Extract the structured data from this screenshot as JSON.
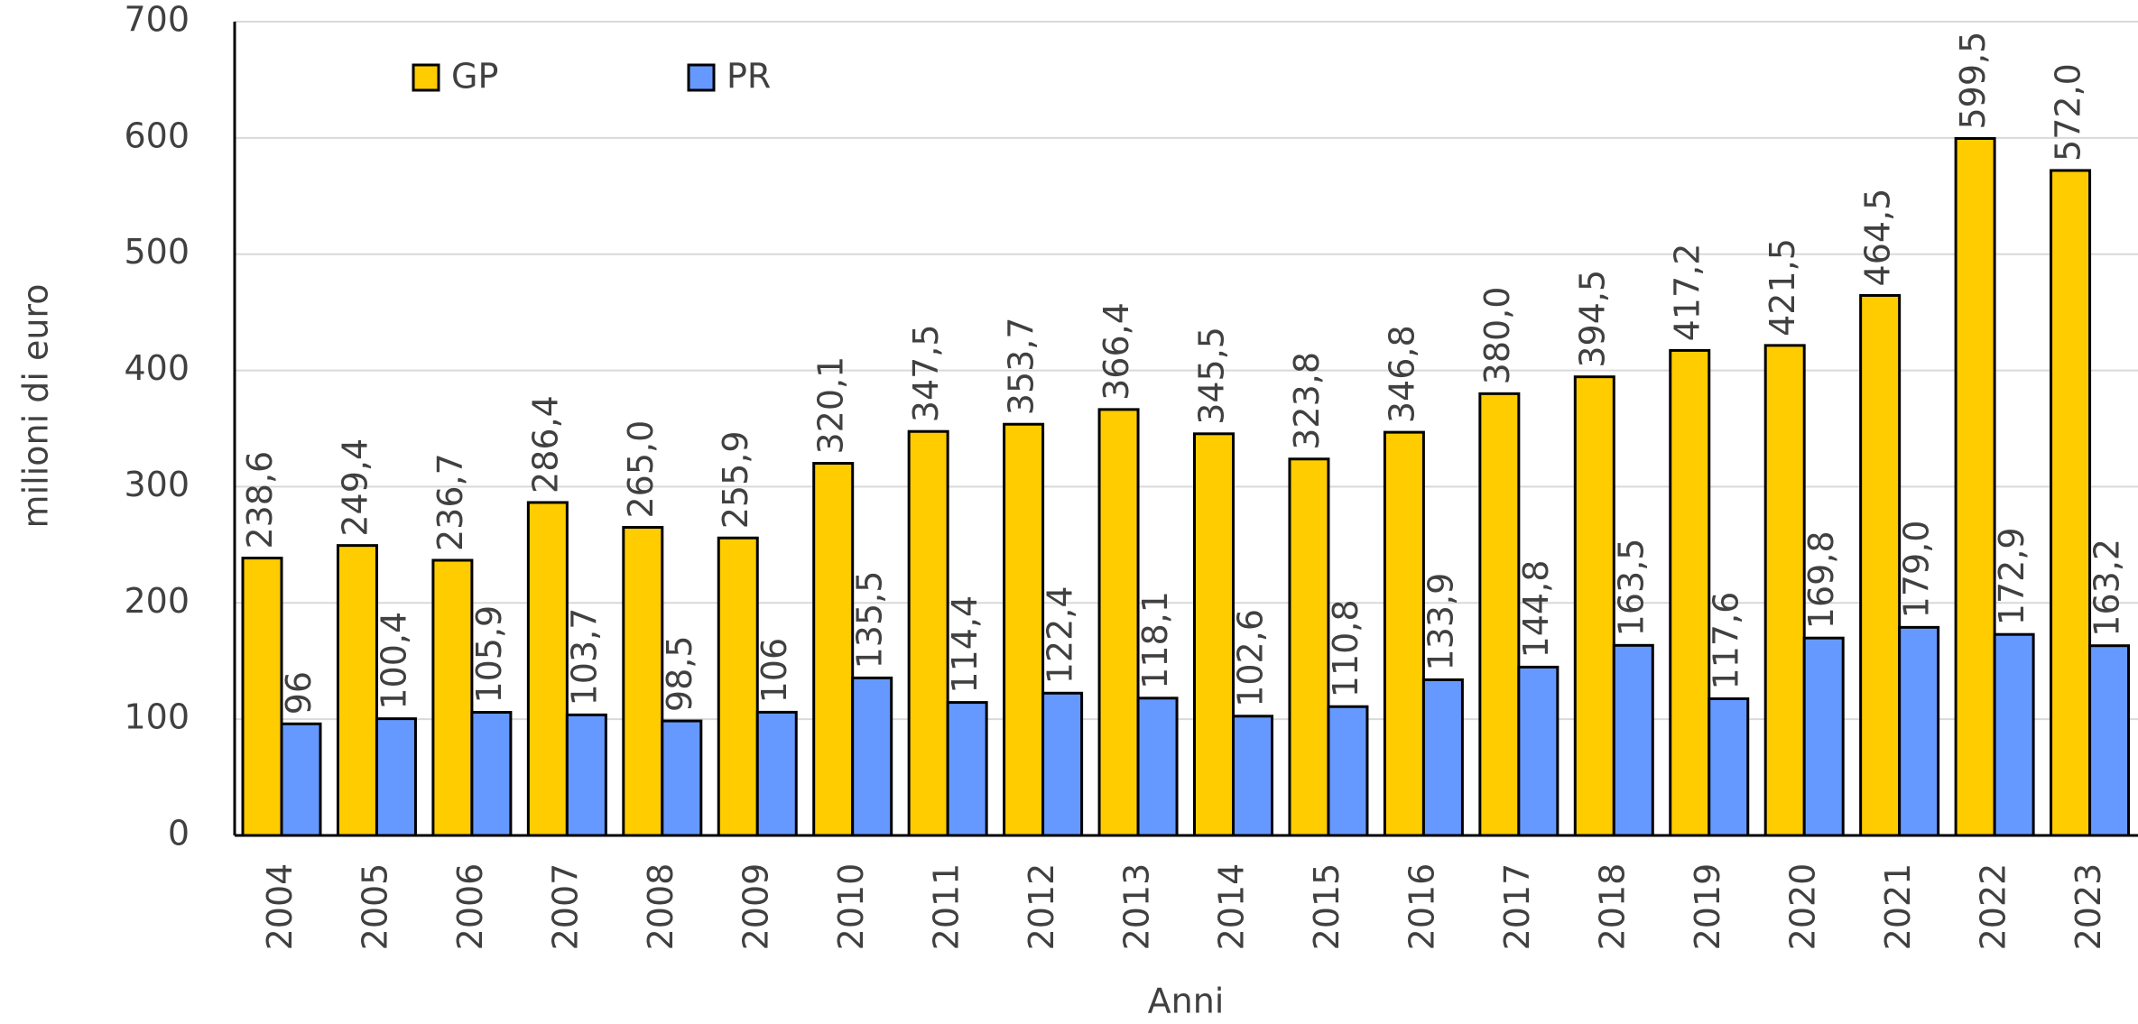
{
  "chart_data": {
    "type": "bar",
    "x_label": "Anni",
    "y_label": "milioni di euro",
    "categories": [
      "2004",
      "2005",
      "2006",
      "2007",
      "2008",
      "2009",
      "2010",
      "2011",
      "2012",
      "2013",
      "2014",
      "2015",
      "2016",
      "2017",
      "2018",
      "2019",
      "2020",
      "2021",
      "2022",
      "2023"
    ],
    "series": [
      {
        "name": "GP",
        "color": "#ffcc00",
        "values": [
          238.6,
          249.4,
          236.7,
          286.4,
          265.0,
          255.9,
          320.1,
          347.5,
          353.7,
          366.4,
          345.5,
          323.8,
          346.8,
          380.0,
          394.5,
          417.2,
          421.5,
          464.5,
          599.5,
          572.0
        ],
        "value_labels": [
          "238,6",
          "249,4",
          "236,7",
          "286,4",
          "265,0",
          "255,9",
          "320,1",
          "347,5",
          "353,7",
          "366,4",
          "345,5",
          "323,8",
          "346,8",
          "380,0",
          "394,5",
          "417,2",
          "421,5",
          "464,5",
          "599,5",
          "572,0"
        ]
      },
      {
        "name": "PR",
        "color": "#6699ff",
        "values": [
          96,
          100.4,
          105.9,
          103.7,
          98.5,
          106,
          135.5,
          114.4,
          122.4,
          118.1,
          102.6,
          110.8,
          133.9,
          144.8,
          163.5,
          117.6,
          169.8,
          179.0,
          172.9,
          163.2
        ],
        "value_labels": [
          "96",
          "100,4",
          "105,9",
          "103,7",
          "98,5",
          "106",
          "135,5",
          "114,4",
          "122,4",
          "118,1",
          "102,6",
          "110,8",
          "133,9",
          "144,8",
          "163,5",
          "117,6",
          "169,8",
          "179,0",
          "172,9",
          "163,2"
        ]
      }
    ],
    "ylim": [
      0,
      700
    ],
    "yticks": [
      0,
      100,
      200,
      300,
      400,
      500,
      600,
      700
    ],
    "grid": true,
    "legend": "top-left"
  }
}
